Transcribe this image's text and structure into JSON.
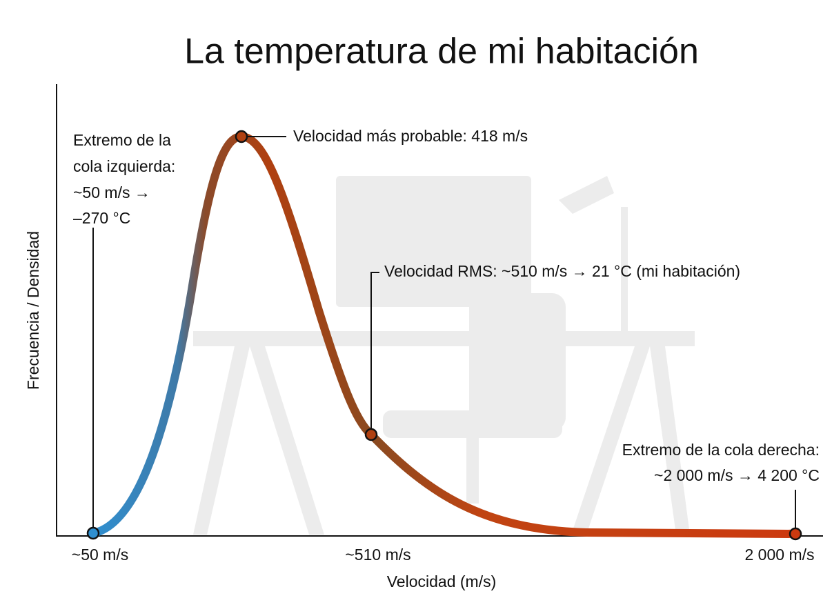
{
  "title": "La temperatura de mi habitación",
  "y_axis_label": "Frecuencia / Densidad",
  "x_axis_label": "Velocidad (m/s)",
  "x_tick_labels": [
    "~50 m/s",
    "~510 m/s",
    "2 000 m/s"
  ],
  "annotations": {
    "left_tail": [
      "Extremo de la",
      "cola izquierda:",
      "~50 m/s →",
      "–270 °C"
    ],
    "peak": "Velocidad más probable: 418 m/s",
    "rms": "Velocidad RMS: ~510 m/s → 21 °C (mi habitación)",
    "right_tail": [
      "Extremo de la cola derecha:",
      "~2 000 m/s → 4 200 °C"
    ]
  }
}
